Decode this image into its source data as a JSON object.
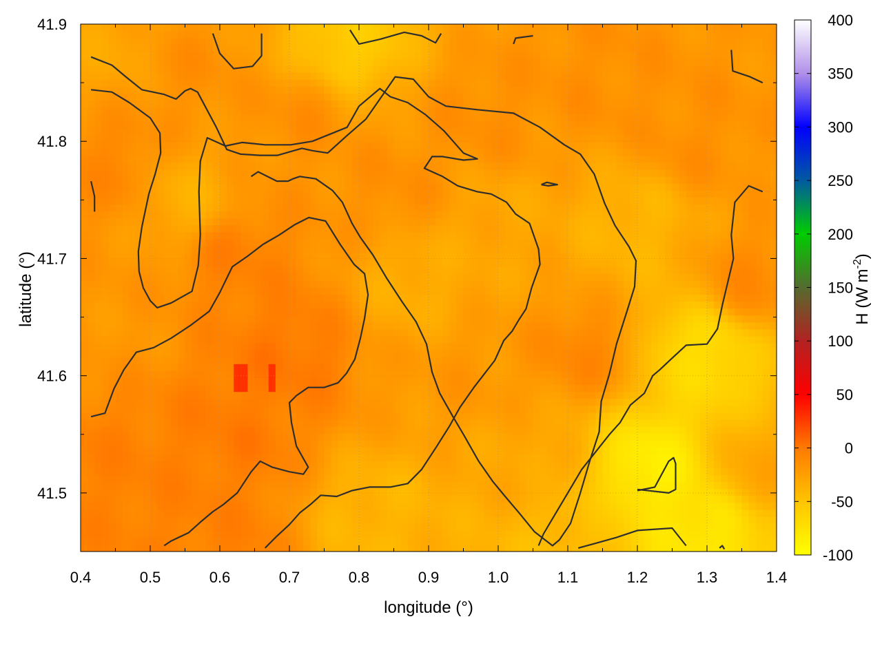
{
  "chart_data": {
    "type": "heatmap",
    "title": "",
    "xlabel": "longitude (°)",
    "ylabel": "latitude (°)",
    "colorbar_label_main": "H (W m",
    "colorbar_label_sup": "-2",
    "colorbar_label_end": ")",
    "xlim": [
      0.4,
      1.4
    ],
    "ylim": [
      41.45,
      41.9
    ],
    "x_ticks": [
      0.4,
      0.5,
      0.6,
      0.7,
      0.8,
      0.9,
      1.0,
      1.1,
      1.2,
      1.3,
      1.4
    ],
    "x_tick_labels": [
      "0.4",
      "0.5",
      "0.6",
      "0.7",
      "0.8",
      "0.9",
      "1.0",
      "1.1",
      "1.2",
      "1.3",
      "1.4"
    ],
    "y_ticks": [
      41.5,
      41.6,
      41.7,
      41.8,
      41.9
    ],
    "y_tick_labels": [
      "41.5",
      "41.6",
      "41.7",
      "41.8",
      "41.9"
    ],
    "colorbar_range": [
      -100,
      400
    ],
    "colorbar_ticks": [
      -100,
      -50,
      0,
      50,
      100,
      150,
      200,
      250,
      300,
      350,
      400
    ],
    "colorbar_tick_labels": [
      "-100",
      "-50",
      "0",
      "50",
      "100",
      "150",
      "200",
      "250",
      "300",
      "350",
      "400"
    ],
    "colorbar_stops": [
      {
        "value": -100,
        "color": "#ffff00"
      },
      {
        "value": -50,
        "color": "#ffc400"
      },
      {
        "value": 0,
        "color": "#ff7a00"
      },
      {
        "value": 50,
        "color": "#ff0000"
      },
      {
        "value": 100,
        "color": "#b22222"
      },
      {
        "value": 150,
        "color": "#556b2f"
      },
      {
        "value": 200,
        "color": "#00cc00"
      },
      {
        "value": 250,
        "color": "#005aa0"
      },
      {
        "value": 300,
        "color": "#0000ff"
      },
      {
        "value": 350,
        "color": "#b090e8"
      },
      {
        "value": 400,
        "color": "#ffffff"
      }
    ],
    "grid": true,
    "field_anchors": [
      {
        "lon": 0.45,
        "lat": 41.88,
        "value": -30
      },
      {
        "lon": 0.45,
        "lat": 41.78,
        "value": -10
      },
      {
        "lon": 0.45,
        "lat": 41.65,
        "value": -20
      },
      {
        "lon": 0.45,
        "lat": 41.52,
        "value": -5
      },
      {
        "lon": 0.55,
        "lat": 41.75,
        "value": -35
      },
      {
        "lon": 0.55,
        "lat": 41.86,
        "value": -15
      },
      {
        "lon": 0.62,
        "lat": 41.7,
        "value": -5
      },
      {
        "lon": 0.62,
        "lat": 41.55,
        "value": -2
      },
      {
        "lon": 0.7,
        "lat": 41.62,
        "value": 0
      },
      {
        "lon": 0.72,
        "lat": 41.82,
        "value": -15
      },
      {
        "lon": 0.78,
        "lat": 41.88,
        "value": -55
      },
      {
        "lon": 0.85,
        "lat": 41.76,
        "value": -15
      },
      {
        "lon": 0.88,
        "lat": 41.68,
        "value": -35
      },
      {
        "lon": 0.95,
        "lat": 41.6,
        "value": -20
      },
      {
        "lon": 0.98,
        "lat": 41.82,
        "value": -15
      },
      {
        "lon": 1.0,
        "lat": 41.73,
        "value": -30
      },
      {
        "lon": 1.05,
        "lat": 41.52,
        "value": -30
      },
      {
        "lon": 1.12,
        "lat": 41.62,
        "value": -10
      },
      {
        "lon": 1.15,
        "lat": 41.85,
        "value": -15
      },
      {
        "lon": 1.2,
        "lat": 41.73,
        "value": -40
      },
      {
        "lon": 1.22,
        "lat": 41.52,
        "value": -85
      },
      {
        "lon": 1.3,
        "lat": 41.47,
        "value": -80
      },
      {
        "lon": 1.3,
        "lat": 41.62,
        "value": -70
      },
      {
        "lon": 1.28,
        "lat": 41.8,
        "value": -15
      },
      {
        "lon": 1.36,
        "lat": 41.68,
        "value": -12
      },
      {
        "lon": 1.37,
        "lat": 41.52,
        "value": -30
      },
      {
        "lon": 1.1,
        "lat": 41.47,
        "value": -45
      },
      {
        "lon": 0.82,
        "lat": 41.48,
        "value": -40
      },
      {
        "lon": 0.6,
        "lat": 41.46,
        "value": -5
      }
    ],
    "hot_spots": [
      {
        "lon": 0.63,
        "lat": 41.6,
        "value": 30
      },
      {
        "lon": 0.673,
        "lat": 41.6,
        "value": 30
      }
    ],
    "contours": [
      [
        [
          0.415,
          41.872
        ],
        [
          0.445,
          41.865
        ],
        [
          0.465,
          41.855
        ],
        [
          0.488,
          41.844
        ],
        [
          0.52,
          41.84
        ],
        [
          0.537,
          41.836
        ],
        [
          0.55,
          41.843
        ],
        [
          0.558,
          41.845
        ],
        [
          0.568,
          41.842
        ],
        [
          0.595,
          41.812
        ],
        [
          0.61,
          41.793
        ],
        [
          0.63,
          41.789
        ],
        [
          0.658,
          41.788
        ],
        [
          0.683,
          41.788
        ],
        [
          0.718,
          41.794
        ],
        [
          0.733,
          41.792
        ],
        [
          0.755,
          41.79
        ],
        [
          0.783,
          41.805
        ],
        [
          0.81,
          41.819
        ],
        [
          0.83,
          41.836
        ],
        [
          0.852,
          41.855
        ],
        [
          0.878,
          41.853
        ],
        [
          0.9,
          41.838
        ],
        [
          0.925,
          41.83
        ],
        [
          0.97,
          41.827
        ],
        [
          1.022,
          41.824
        ],
        [
          1.06,
          41.812
        ],
        [
          1.095,
          41.797
        ],
        [
          1.118,
          41.789
        ],
        [
          1.138,
          41.772
        ],
        [
          1.153,
          41.747
        ],
        [
          1.168,
          41.728
        ],
        [
          1.188,
          41.71
        ],
        [
          1.198,
          41.698
        ],
        [
          1.196,
          41.676
        ],
        [
          1.185,
          41.655
        ],
        [
          1.17,
          41.627
        ],
        [
          1.16,
          41.602
        ],
        [
          1.148,
          41.578
        ],
        [
          1.145,
          41.552
        ],
        [
          1.132,
          41.528
        ],
        [
          1.118,
          41.5
        ],
        [
          1.104,
          41.474
        ],
        [
          1.088,
          41.46
        ],
        [
          1.078,
          41.455
        ],
        [
          1.052,
          41.467
        ],
        [
          1.03,
          41.483
        ],
        [
          1.02,
          41.49
        ],
        [
          1.01,
          41.497
        ],
        [
          0.992,
          41.51
        ],
        [
          0.972,
          41.527
        ],
        [
          0.951,
          41.549
        ],
        [
          0.935,
          41.565
        ],
        [
          0.916,
          41.585
        ],
        [
          0.905,
          41.603
        ],
        [
          0.897,
          41.627
        ],
        [
          0.882,
          41.646
        ],
        [
          0.862,
          41.663
        ],
        [
          0.84,
          41.683
        ],
        [
          0.82,
          41.703
        ],
        [
          0.802,
          41.718
        ],
        [
          0.79,
          41.73
        ],
        [
          0.776,
          41.748
        ],
        [
          0.762,
          41.758
        ],
        [
          0.738,
          41.768
        ],
        [
          0.715,
          41.77
        ],
        [
          0.705,
          41.768
        ],
        [
          0.698,
          41.766
        ],
        [
          0.682,
          41.766
        ],
        [
          0.655,
          41.774
        ],
        [
          0.645,
          41.77
        ]
      ],
      [
        [
          0.415,
          41.844
        ],
        [
          0.445,
          41.842
        ],
        [
          0.47,
          41.833
        ],
        [
          0.5,
          41.82
        ],
        [
          0.514,
          41.807
        ],
        [
          0.515,
          41.79
        ],
        [
          0.507,
          41.772
        ],
        [
          0.498,
          41.755
        ],
        [
          0.488,
          41.727
        ],
        [
          0.483,
          41.706
        ],
        [
          0.484,
          41.689
        ],
        [
          0.49,
          41.675
        ],
        [
          0.5,
          41.664
        ],
        [
          0.51,
          41.658
        ],
        [
          0.53,
          41.662
        ],
        [
          0.56,
          41.672
        ],
        [
          0.569,
          41.694
        ],
        [
          0.572,
          41.72
        ],
        [
          0.57,
          41.757
        ],
        [
          0.572,
          41.783
        ],
        [
          0.582,
          41.803
        ],
        [
          0.608,
          41.796
        ],
        [
          0.632,
          41.799
        ],
        [
          0.665,
          41.797
        ],
        [
          0.702,
          41.797
        ],
        [
          0.733,
          41.8
        ],
        [
          0.783,
          41.812
        ],
        [
          0.8,
          41.83
        ],
        [
          0.83,
          41.845
        ],
        [
          0.845,
          41.838
        ],
        [
          0.87,
          41.833
        ],
        [
          0.895,
          41.823
        ],
        [
          0.922,
          41.809
        ],
        [
          0.95,
          41.79
        ],
        [
          0.97,
          41.785
        ],
        [
          0.95,
          41.784
        ],
        [
          0.92,
          41.787
        ],
        [
          0.905,
          41.787
        ],
        [
          0.894,
          41.777
        ],
        [
          0.92,
          41.77
        ],
        [
          0.942,
          41.762
        ],
        [
          0.97,
          41.757
        ],
        [
          0.99,
          41.755
        ],
        [
          1.012,
          41.748
        ],
        [
          1.025,
          41.738
        ],
        [
          1.045,
          41.73
        ],
        [
          1.058,
          41.708
        ],
        [
          1.06,
          41.695
        ],
        [
          1.048,
          41.675
        ],
        [
          1.04,
          41.657
        ],
        [
          1.03,
          41.648
        ],
        [
          1.02,
          41.638
        ],
        [
          1.008,
          41.63
        ],
        [
          0.995,
          41.613
        ],
        [
          0.982,
          41.603
        ],
        [
          0.965,
          41.59
        ],
        [
          0.945,
          41.573
        ],
        [
          0.93,
          41.557
        ],
        [
          0.912,
          41.54
        ],
        [
          0.89,
          41.52
        ],
        [
          0.87,
          41.508
        ],
        [
          0.845,
          41.505
        ],
        [
          0.815,
          41.505
        ],
        [
          0.79,
          41.502
        ],
        [
          0.768,
          41.497
        ],
        [
          0.745,
          41.498
        ],
        [
          0.73,
          41.49
        ],
        [
          0.715,
          41.483
        ],
        [
          0.7,
          41.473
        ],
        [
          0.68,
          41.462
        ],
        [
          0.665,
          41.453
        ]
      ],
      [
        [
          0.415,
          41.565
        ],
        [
          0.435,
          41.568
        ],
        [
          0.448,
          41.589
        ],
        [
          0.462,
          41.605
        ],
        [
          0.48,
          41.62
        ],
        [
          0.505,
          41.624
        ],
        [
          0.53,
          41.632
        ],
        [
          0.558,
          41.643
        ],
        [
          0.585,
          41.655
        ],
        [
          0.6,
          41.671
        ],
        [
          0.618,
          41.693
        ],
        [
          0.64,
          41.702
        ],
        [
          0.662,
          41.712
        ],
        [
          0.685,
          41.72
        ],
        [
          0.708,
          41.729
        ],
        [
          0.728,
          41.735
        ],
        [
          0.752,
          41.732
        ],
        [
          0.773,
          41.712
        ],
        [
          0.793,
          41.695
        ],
        [
          0.808,
          41.687
        ],
        [
          0.813,
          41.669
        ],
        [
          0.808,
          41.649
        ],
        [
          0.802,
          41.632
        ],
        [
          0.794,
          41.614
        ],
        [
          0.782,
          41.602
        ],
        [
          0.77,
          41.594
        ],
        [
          0.75,
          41.59
        ],
        [
          0.727,
          41.59
        ],
        [
          0.71,
          41.583
        ],
        [
          0.7,
          41.577
        ],
        [
          0.703,
          41.56
        ],
        [
          0.71,
          41.54
        ],
        [
          0.727,
          41.522
        ],
        [
          0.72,
          41.516
        ],
        [
          0.7,
          41.518
        ],
        [
          0.675,
          41.522
        ],
        [
          0.658,
          41.527
        ],
        [
          0.645,
          41.518
        ],
        [
          0.625,
          41.5
        ],
        [
          0.605,
          41.49
        ],
        [
          0.59,
          41.484
        ],
        [
          0.572,
          41.475
        ],
        [
          0.555,
          41.466
        ],
        [
          0.53,
          41.459
        ],
        [
          0.52,
          41.455
        ]
      ],
      [
        [
          0.415,
          41.766
        ],
        [
          0.42,
          41.753
        ],
        [
          0.42,
          41.74
        ]
      ],
      [
        [
          0.59,
          41.892
        ],
        [
          0.6,
          41.875
        ],
        [
          0.62,
          41.862
        ],
        [
          0.647,
          41.864
        ],
        [
          0.66,
          41.873
        ],
        [
          0.66,
          41.892
        ]
      ],
      [
        [
          0.787,
          41.895
        ],
        [
          0.8,
          41.883
        ],
        [
          0.83,
          41.887
        ],
        [
          0.865,
          41.893
        ],
        [
          0.89,
          41.89
        ],
        [
          0.91,
          41.884
        ],
        [
          0.918,
          41.892
        ]
      ],
      [
        [
          1.022,
          41.883
        ],
        [
          1.025,
          41.888
        ],
        [
          1.05,
          41.89
        ]
      ],
      [
        [
          1.062,
          41.763
        ],
        [
          1.07,
          41.765
        ],
        [
          1.085,
          41.763
        ],
        [
          1.072,
          41.762
        ],
        [
          1.062,
          41.763
        ]
      ],
      [
        [
          1.335,
          41.878
        ],
        [
          1.337,
          41.86
        ],
        [
          1.362,
          41.855
        ],
        [
          1.38,
          41.85
        ]
      ],
      [
        [
          1.38,
          41.757
        ],
        [
          1.36,
          41.762
        ],
        [
          1.34,
          41.748
        ],
        [
          1.335,
          41.72
        ],
        [
          1.338,
          41.7
        ],
        [
          1.33,
          41.68
        ],
        [
          1.322,
          41.66
        ],
        [
          1.315,
          41.64
        ],
        [
          1.3,
          41.627
        ],
        [
          1.27,
          41.626
        ],
        [
          1.25,
          41.615
        ],
        [
          1.232,
          41.605
        ],
        [
          1.222,
          41.6
        ],
        [
          1.21,
          41.585
        ],
        [
          1.19,
          41.575
        ],
        [
          1.175,
          41.56
        ],
        [
          1.16,
          41.55
        ],
        [
          1.14,
          41.535
        ],
        [
          1.12,
          41.52
        ],
        [
          1.1,
          41.5
        ],
        [
          1.08,
          41.48
        ],
        [
          1.065,
          41.465
        ],
        [
          1.058,
          41.455
        ]
      ],
      [
        [
          1.2,
          41.502
        ],
        [
          1.225,
          41.505
        ],
        [
          1.245,
          41.527
        ],
        [
          1.252,
          41.53
        ],
        [
          1.255,
          41.525
        ],
        [
          1.255,
          41.503
        ],
        [
          1.245,
          41.5
        ],
        [
          1.2,
          41.503
        ]
      ],
      [
        [
          1.115,
          41.453
        ],
        [
          1.14,
          41.457
        ],
        [
          1.17,
          41.462
        ],
        [
          1.2,
          41.468
        ],
        [
          1.25,
          41.47
        ],
        [
          1.27,
          41.455
        ]
      ],
      [
        [
          1.318,
          41.453
        ],
        [
          1.322,
          41.455
        ],
        [
          1.325,
          41.452
        ]
      ]
    ]
  }
}
